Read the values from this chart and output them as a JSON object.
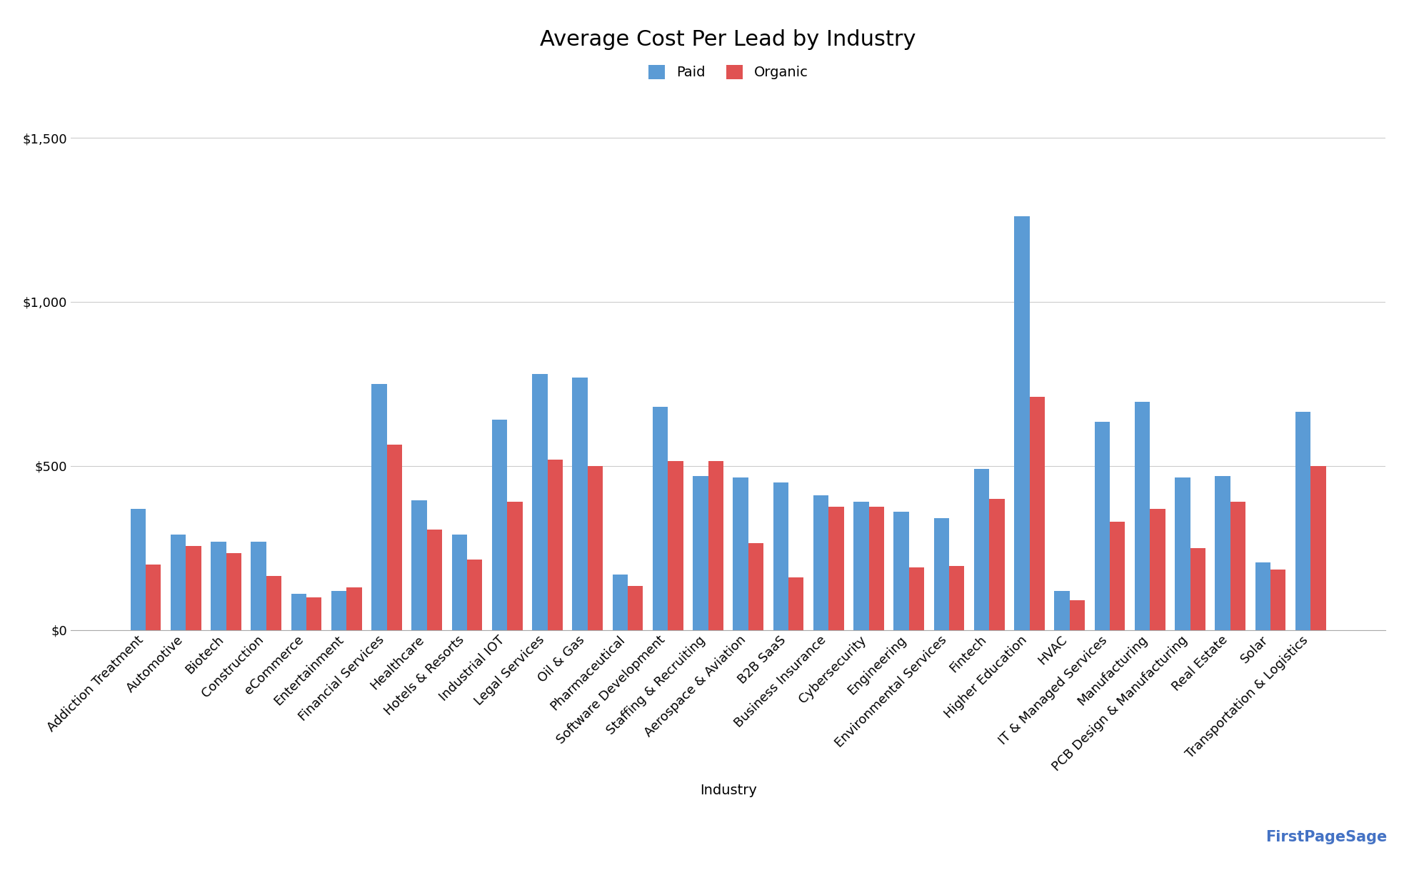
{
  "title": "Average Cost Per Lead by Industry",
  "xlabel": "Industry",
  "ylabel": "",
  "legend_labels": [
    "Paid",
    "Organic"
  ],
  "paid_color": "#5B9BD5",
  "organic_color": "#E05252",
  "background_color": "#FFFFFF",
  "ylim": [
    0,
    1600
  ],
  "yticks": [
    0,
    500,
    1000,
    1500
  ],
  "ytick_labels": [
    "$0",
    "$500",
    "$1,000",
    "$1,500"
  ],
  "categories": [
    "Addiction Treatment",
    "Automotive",
    "Biotech",
    "Construction",
    "eCommerce",
    "Entertainment",
    "Financial Services",
    "Healthcare",
    "Hotels & Resorts",
    "Industrial IOT",
    "Legal Services",
    "Oil & Gas",
    "Pharmaceutical",
    "Software Development",
    "Staffing & Recruiting",
    "Aerospace & Aviation",
    "B2B SaaS",
    "Business Insurance",
    "Cybersecurity",
    "Engineering",
    "Environmental Services",
    "Fintech",
    "Higher Education",
    "HVAC",
    "IT & Managed Services",
    "Manufacturing",
    "PCB Design & Manufacturing",
    "Real Estate",
    "Solar",
    "Transportation & Logistics"
  ],
  "paid": [
    370,
    290,
    270,
    270,
    110,
    120,
    750,
    395,
    290,
    640,
    780,
    770,
    170,
    680,
    470,
    465,
    450,
    410,
    390,
    360,
    340,
    490,
    1260,
    120,
    635,
    695,
    465,
    470,
    205,
    665
  ],
  "organic": [
    200,
    255,
    235,
    165,
    100,
    130,
    565,
    305,
    215,
    390,
    520,
    500,
    135,
    515,
    515,
    265,
    160,
    375,
    375,
    190,
    195,
    400,
    710,
    90,
    330,
    370,
    250,
    390,
    185,
    500
  ],
  "grid_color": "#CCCCCC",
  "title_fontsize": 22,
  "tick_fontsize": 13,
  "xlabel_fontsize": 14,
  "legend_fontsize": 14,
  "bar_width": 0.38
}
